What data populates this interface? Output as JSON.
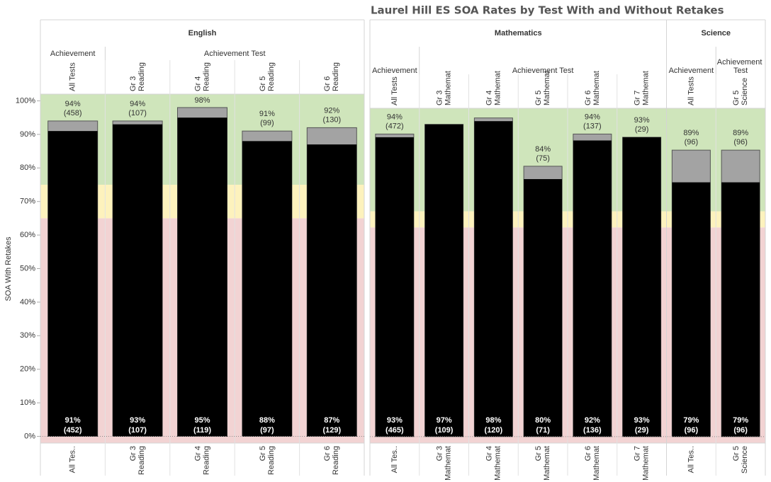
{
  "title": "Laurel Hill ES SOA Rates by Test With and Without Retakes",
  "chart_data": [
    {
      "type": "bar",
      "y_label": "SOA With Retakes",
      "ylim": [
        -2,
        102
      ],
      "yticks": [
        {
          "value": 0,
          "label": "0%"
        },
        {
          "value": 10,
          "label": "10%"
        },
        {
          "value": 20,
          "label": "20%"
        },
        {
          "value": 30,
          "label": "30%"
        },
        {
          "value": 40,
          "label": "40%"
        },
        {
          "value": 50,
          "label": "50%"
        },
        {
          "value": 60,
          "label": "60%"
        },
        {
          "value": 70,
          "label": "70%"
        },
        {
          "value": 80,
          "label": "80%"
        },
        {
          "value": 90,
          "label": "90%"
        },
        {
          "value": 100,
          "label": "100%"
        }
      ],
      "bands": [
        {
          "to": 65,
          "color": "#f2d3d3"
        },
        {
          "from": 65,
          "to": 75,
          "color": "#fdf2bd"
        },
        {
          "from": 75,
          "color": "#cfe5bb"
        }
      ],
      "subjects": [
        {
          "name": "English",
          "sections": [
            {
              "name": "Achievement",
              "categories": [
                [
                  "All Tests"
                ]
              ],
              "bottom_labels": [
                [
                  "All Tes.."
                ]
              ],
              "with_retakes": {
                "color": "#a3a3a3",
                "values": [
                  94
                ],
                "value_labels": [
                  "94%"
                ],
                "count_labels": [
                  "(458)"
                ]
              },
              "without_retakes": {
                "color": "#000000",
                "values": [
                  91
                ],
                "value_labels": [
                  "91%"
                ],
                "count_labels": [
                  "(452)"
                ]
              }
            },
            {
              "name": "Achievement Test",
              "categories": [
                [
                  "Gr 3",
                  "Reading"
                ],
                [
                  "Gr 4",
                  "Reading"
                ],
                [
                  "Gr 5",
                  "Reading"
                ],
                [
                  "Gr 6",
                  "Reading"
                ]
              ],
              "bottom_labels": [
                [
                  "Gr 3",
                  "Reading"
                ],
                [
                  "Gr 4",
                  "Reading"
                ],
                [
                  "Gr 5",
                  "Reading"
                ],
                [
                  "Gr 6",
                  "Reading"
                ]
              ],
              "with_retakes": {
                "color": "#a3a3a3",
                "values": [
                  94,
                  98,
                  91,
                  92
                ],
                "value_labels": [
                  "94%",
                  "98%",
                  "91%",
                  "92%"
                ],
                "count_labels": [
                  "(107)",
                  null,
                  "(99)",
                  "(130)"
                ]
              },
              "without_retakes": {
                "color": "#000000",
                "values": [
                  93,
                  95,
                  88,
                  87
                ],
                "value_labels": [
                  "93%",
                  "95%",
                  "88%",
                  "87%"
                ],
                "count_labels": [
                  "(107)",
                  "(119)",
                  "(97)",
                  "(129)"
                ]
              }
            }
          ]
        }
      ]
    },
    {
      "type": "bar",
      "ylim": [
        -2,
        102
      ],
      "bands": [
        {
          "to": 65,
          "color": "#f2d3d3"
        },
        {
          "from": 65,
          "to": 70,
          "color": "#fdf2bd"
        },
        {
          "from": 70,
          "color": "#cfe5bb"
        }
      ],
      "subjects": [
        {
          "name": "Mathematics",
          "sections": [
            {
              "name": "Achievement",
              "categories": [
                [
                  "All Tests"
                ]
              ],
              "bottom_labels": [
                [
                  "All Tes.."
                ]
              ],
              "with_retakes": {
                "color": "#a3a3a3",
                "values": [
                  94
                ],
                "value_labels": [
                  "94%"
                ],
                "count_labels": [
                  "(472)"
                ]
              },
              "without_retakes": {
                "color": "#000000",
                "values": [
                  93
                ],
                "value_labels": [
                  "93%"
                ],
                "count_labels": [
                  "(465)"
                ]
              }
            },
            {
              "name": "Achievement Test",
              "categories": [
                [
                  "Gr 3",
                  "Mathemat"
                ],
                [
                  "Gr 4",
                  "Mathemat"
                ],
                [
                  "Gr 5",
                  "Mathemat"
                ],
                [
                  "Gr 6",
                  "Mathemat"
                ],
                [
                  "Gr 7",
                  "Mathemat"
                ]
              ],
              "bottom_labels": [
                [
                  "Gr 3",
                  "Mathemat"
                ],
                [
                  "Gr 4",
                  "Mathemat"
                ],
                [
                  "Gr 5",
                  "Mathemat"
                ],
                [
                  "Gr 6",
                  "Mathemat"
                ],
                [
                  "Gr 7",
                  "Mathemat"
                ]
              ],
              "with_retakes": {
                "color": "#a3a3a3",
                "values": [
                  97,
                  99,
                  84,
                  94,
                  93
                ],
                "value_labels": [
                  null,
                  null,
                  "84%",
                  "94%",
                  "93%"
                ],
                "count_labels": [
                  null,
                  null,
                  "(75)",
                  "(137)",
                  "(29)"
                ]
              },
              "without_retakes": {
                "color": "#000000",
                "values": [
                  97,
                  98,
                  80,
                  92,
                  93
                ],
                "value_labels": [
                  "97%",
                  "98%",
                  "80%",
                  "92%",
                  "93%"
                ],
                "count_labels": [
                  "(109)",
                  "(120)",
                  "(71)",
                  "(136)",
                  "(29)"
                ]
              }
            }
          ]
        },
        {
          "name": "Science",
          "sections": [
            {
              "name": "Achievement",
              "categories": [
                [
                  "All Tests"
                ]
              ],
              "bottom_labels": [
                [
                  "All Tes.."
                ]
              ],
              "with_retakes": {
                "color": "#a3a3a3",
                "values": [
                  89
                ],
                "value_labels": [
                  "89%"
                ],
                "count_labels": [
                  "(96)"
                ]
              },
              "without_retakes": {
                "color": "#000000",
                "values": [
                  79
                ],
                "value_labels": [
                  "79%"
                ],
                "count_labels": [
                  "(96)"
                ]
              }
            },
            {
              "name": "Achievement Test",
              "categories": [
                [
                  "Gr 5",
                  "Science"
                ]
              ],
              "bottom_labels": [
                [
                  "Gr 5",
                  "Science"
                ]
              ],
              "with_retakes": {
                "color": "#a3a3a3",
                "values": [
                  89
                ],
                "value_labels": [
                  "89%"
                ],
                "count_labels": [
                  "(96)"
                ]
              },
              "without_retakes": {
                "color": "#000000",
                "values": [
                  79
                ],
                "value_labels": [
                  "79%"
                ],
                "count_labels": [
                  "(96)"
                ]
              }
            }
          ]
        }
      ]
    }
  ]
}
